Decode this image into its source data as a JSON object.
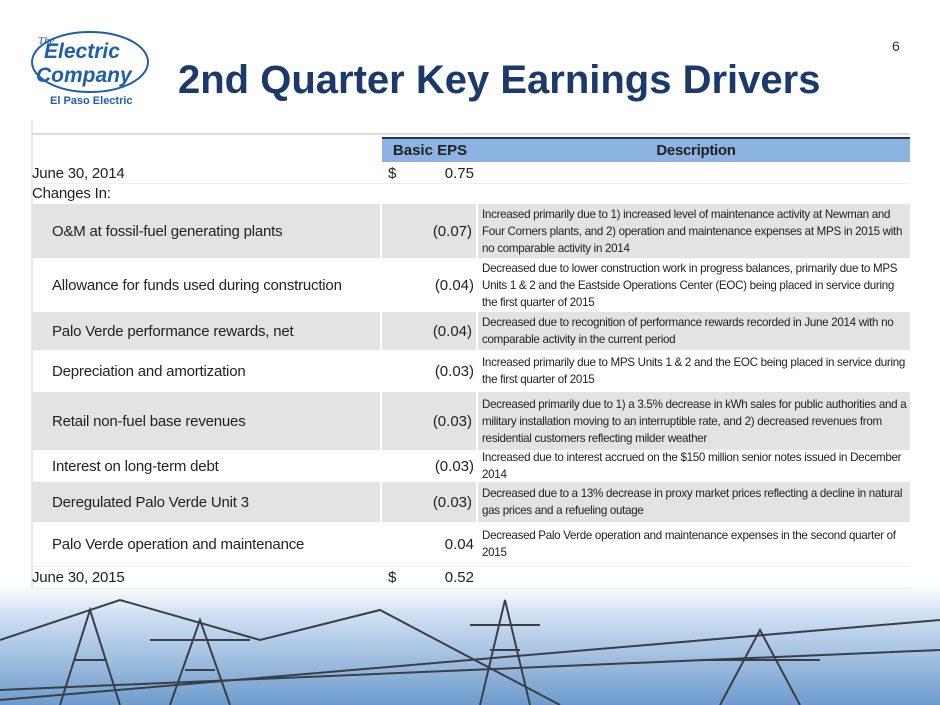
{
  "slide": {
    "page_number": "6",
    "title": "2nd Quarter Key Earnings Drivers",
    "logo": {
      "the": "The",
      "line1": "Electric",
      "line2": "Company",
      "subtitle": "El Paso Electric"
    },
    "table": {
      "header": [
        "Basic EPS",
        "Description"
      ],
      "rows": [
        {
          "label": "June 30, 2014",
          "currency": "$",
          "eps": "0.75",
          "description": ""
        },
        {
          "label": "Changes In:"
        },
        {
          "label": "O&M at fossil-fuel generating plants",
          "eps": "(0.07)",
          "description": "Increased primarily due to 1) increased level of maintenance activity at Newman and Four Corners plants, and 2) operation and maintenance expenses at MPS in 2015 with no comparable activity in 2014"
        },
        {
          "label": "Allowance for funds used during construction",
          "eps": "(0.04)",
          "description": "Decreased due to lower construction work in progress balances, primarily due to MPS Units 1 & 2 and the Eastside Operations Center (EOC) being placed in service during the first quarter of 2015"
        },
        {
          "label": "Palo Verde performance rewards, net",
          "eps": "(0.04)",
          "description": "Decreased due to recognition of performance rewards recorded in June 2014 with no comparable activity in the current period"
        },
        {
          "label": "Depreciation and amortization",
          "eps": "(0.03)",
          "description": "Increased primarily due to MPS Units 1 & 2 and the EOC being placed in service during the first quarter of 2015"
        },
        {
          "label": "Retail non-fuel base revenues",
          "eps": "(0.03)",
          "description": "Decreased primarily due to 1) a 3.5% decrease in kWh sales for public authorities and a military installation moving to an interruptible rate, and 2) decreased revenues from residential customers reflecting milder weather"
        },
        {
          "label": "Interest on long-term debt",
          "eps": "(0.03)",
          "description": "Increased due to interest accrued on the $150 million senior notes issued in December 2014"
        },
        {
          "label": "Deregulated Palo Verde Unit 3",
          "eps": "(0.03)",
          "description": "Decreased due to a 13% decrease in proxy market prices reflecting a decline in natural gas prices and a refueling outage"
        },
        {
          "label": "Palo Verde operation and maintenance",
          "eps": "0.04",
          "description": "Decreased Palo Verde operation and maintenance expenses in the second quarter of 2015"
        },
        {
          "label": "June 30, 2015",
          "currency": "$",
          "eps": "0.52"
        }
      ]
    }
  }
}
